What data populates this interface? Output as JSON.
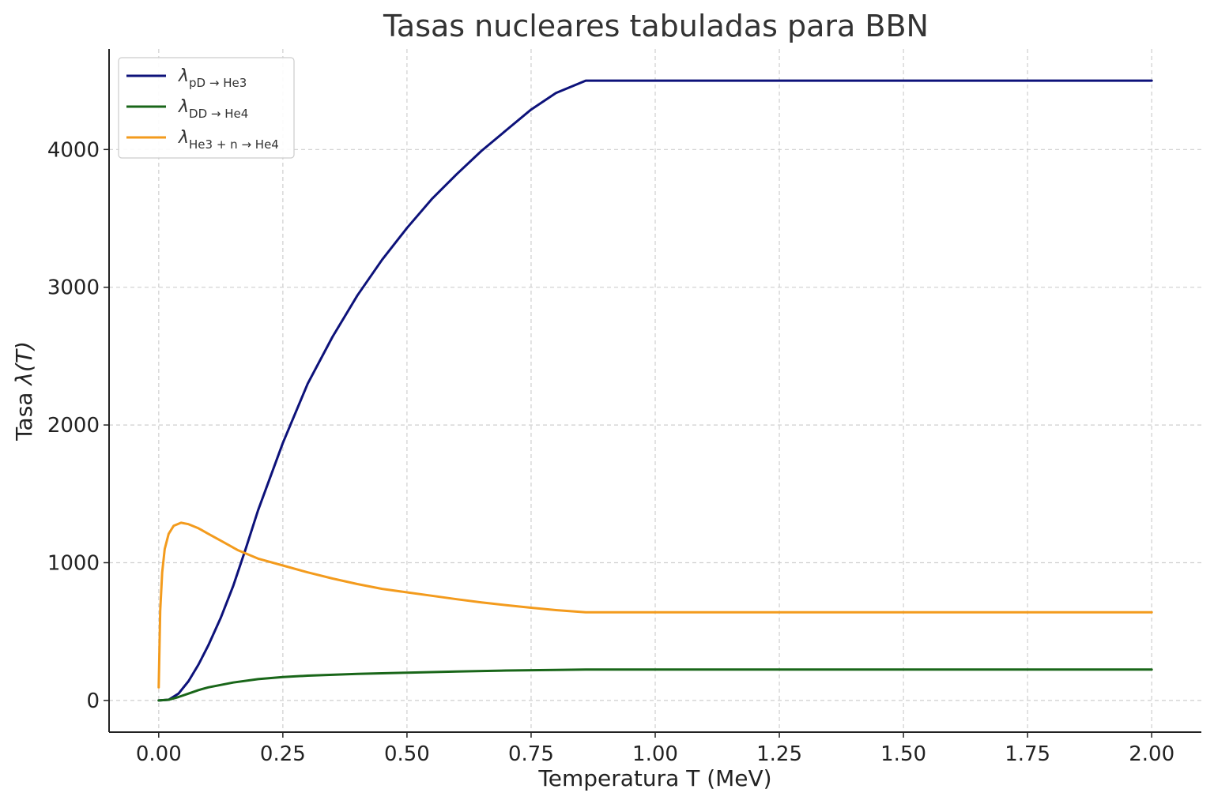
{
  "chart_data": {
    "type": "line",
    "title": "Tasas nucleares tabuladas para BBN",
    "xlabel": "Temperatura T (MeV)",
    "ylabel_prefix": "Tasa ",
    "ylabel_math": "λ(T)",
    "xlim": [
      -0.1,
      2.1
    ],
    "ylim": [
      -230,
      4730
    ],
    "xticks": [
      0.0,
      0.25,
      0.5,
      0.75,
      1.0,
      1.25,
      1.5,
      1.75,
      2.0
    ],
    "xtick_labels": [
      "0.00",
      "0.25",
      "0.50",
      "0.75",
      "1.00",
      "1.25",
      "1.50",
      "1.75",
      "2.00"
    ],
    "yticks": [
      0,
      1000,
      2000,
      3000,
      4000
    ],
    "ytick_labels": [
      "0",
      "1000",
      "2000",
      "3000",
      "4000"
    ],
    "grid": true,
    "legend_position": "top-left",
    "series": [
      {
        "name": "λ",
        "name_sub": "pD → He3",
        "color": "#0d127a",
        "points": [
          [
            0.0,
            0
          ],
          [
            0.02,
            5
          ],
          [
            0.04,
            50
          ],
          [
            0.06,
            140
          ],
          [
            0.08,
            260
          ],
          [
            0.1,
            400
          ],
          [
            0.125,
            600
          ],
          [
            0.15,
            830
          ],
          [
            0.175,
            1100
          ],
          [
            0.2,
            1380
          ],
          [
            0.25,
            1870
          ],
          [
            0.3,
            2300
          ],
          [
            0.35,
            2640
          ],
          [
            0.4,
            2940
          ],
          [
            0.45,
            3200
          ],
          [
            0.5,
            3430
          ],
          [
            0.55,
            3640
          ],
          [
            0.6,
            3820
          ],
          [
            0.65,
            3990
          ],
          [
            0.7,
            4140
          ],
          [
            0.75,
            4290
          ],
          [
            0.8,
            4410
          ],
          [
            0.86,
            4500
          ],
          [
            1.0,
            4500
          ],
          [
            1.25,
            4500
          ],
          [
            1.5,
            4500
          ],
          [
            1.75,
            4500
          ],
          [
            2.0,
            4500
          ]
        ]
      },
      {
        "name": "λ",
        "name_sub": "DD → He4",
        "color": "#196619",
        "points": [
          [
            0.0,
            0
          ],
          [
            0.02,
            5
          ],
          [
            0.04,
            25
          ],
          [
            0.06,
            50
          ],
          [
            0.08,
            75
          ],
          [
            0.1,
            95
          ],
          [
            0.15,
            130
          ],
          [
            0.2,
            155
          ],
          [
            0.25,
            170
          ],
          [
            0.3,
            180
          ],
          [
            0.4,
            193
          ],
          [
            0.5,
            202
          ],
          [
            0.6,
            210
          ],
          [
            0.7,
            217
          ],
          [
            0.8,
            222
          ],
          [
            0.86,
            225
          ],
          [
            1.0,
            225
          ],
          [
            1.25,
            225
          ],
          [
            1.5,
            225
          ],
          [
            1.75,
            225
          ],
          [
            2.0,
            225
          ]
        ]
      },
      {
        "name": "λ",
        "name_sub": "He3 + n → He4",
        "color": "#f39b1d",
        "points": [
          [
            0.0,
            95
          ],
          [
            0.003,
            650
          ],
          [
            0.007,
            930
          ],
          [
            0.012,
            1100
          ],
          [
            0.02,
            1210
          ],
          [
            0.03,
            1268
          ],
          [
            0.045,
            1290
          ],
          [
            0.06,
            1280
          ],
          [
            0.08,
            1250
          ],
          [
            0.1,
            1210
          ],
          [
            0.13,
            1150
          ],
          [
            0.16,
            1090
          ],
          [
            0.2,
            1030
          ],
          [
            0.25,
            980
          ],
          [
            0.3,
            930
          ],
          [
            0.35,
            885
          ],
          [
            0.4,
            845
          ],
          [
            0.45,
            810
          ],
          [
            0.5,
            785
          ],
          [
            0.55,
            760
          ],
          [
            0.6,
            735
          ],
          [
            0.65,
            712
          ],
          [
            0.7,
            692
          ],
          [
            0.75,
            673
          ],
          [
            0.8,
            656
          ],
          [
            0.86,
            640
          ],
          [
            1.0,
            640
          ],
          [
            1.25,
            640
          ],
          [
            1.5,
            640
          ],
          [
            1.75,
            640
          ],
          [
            2.0,
            640
          ]
        ]
      }
    ]
  }
}
